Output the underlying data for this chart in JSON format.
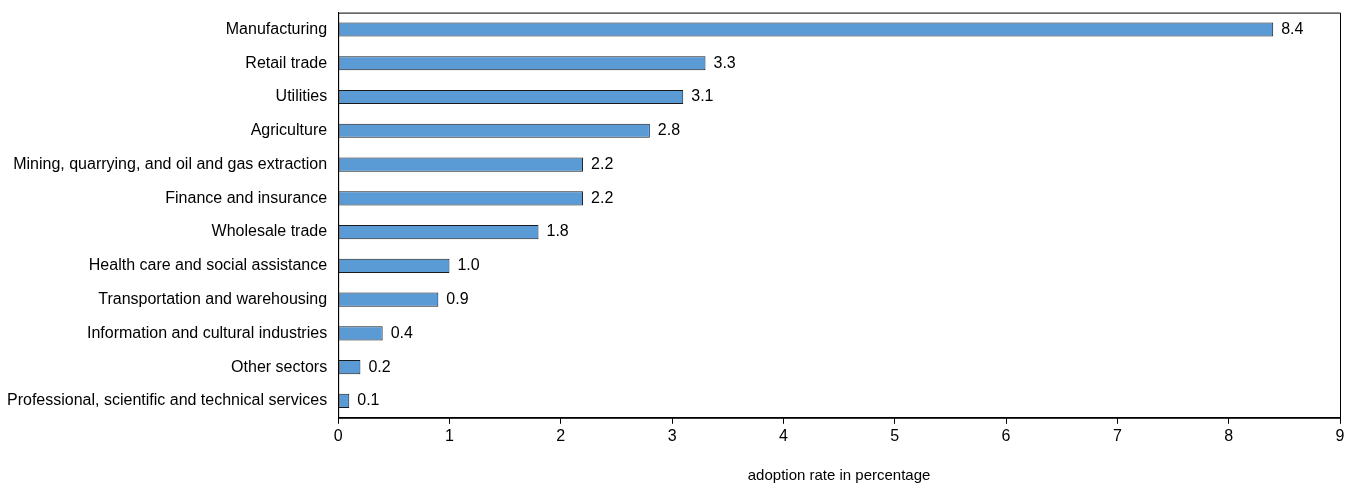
{
  "chart_data": {
    "type": "bar",
    "orientation": "horizontal",
    "xlabel": "adoption rate in percentage",
    "categories": [
      "Manufacturing",
      "Retail trade",
      "Utilities",
      "Agriculture",
      "Mining, quarrying, and oil and gas extraction",
      "Finance and insurance",
      "Wholesale trade",
      "Health care and social assistance",
      "Transportation and warehousing",
      "Information and cultural industries",
      "Other sectors",
      "Professional, scientific and technical services"
    ],
    "values": [
      8.4,
      3.3,
      3.1,
      2.8,
      2.2,
      2.2,
      1.8,
      1.0,
      0.9,
      0.4,
      0.2,
      0.1
    ],
    "value_labels": [
      "8.4",
      "3.3",
      "3.1",
      "2.8",
      "2.2",
      "2.2",
      "1.8",
      "1.0",
      "0.9",
      "0.4",
      "0.2",
      "0.1"
    ],
    "color": "#5b9bd5",
    "xlim": [
      0,
      9
    ],
    "xticks": [
      0,
      1,
      2,
      3,
      4,
      5,
      6,
      7,
      8,
      9
    ],
    "grid": false,
    "legend": false
  }
}
